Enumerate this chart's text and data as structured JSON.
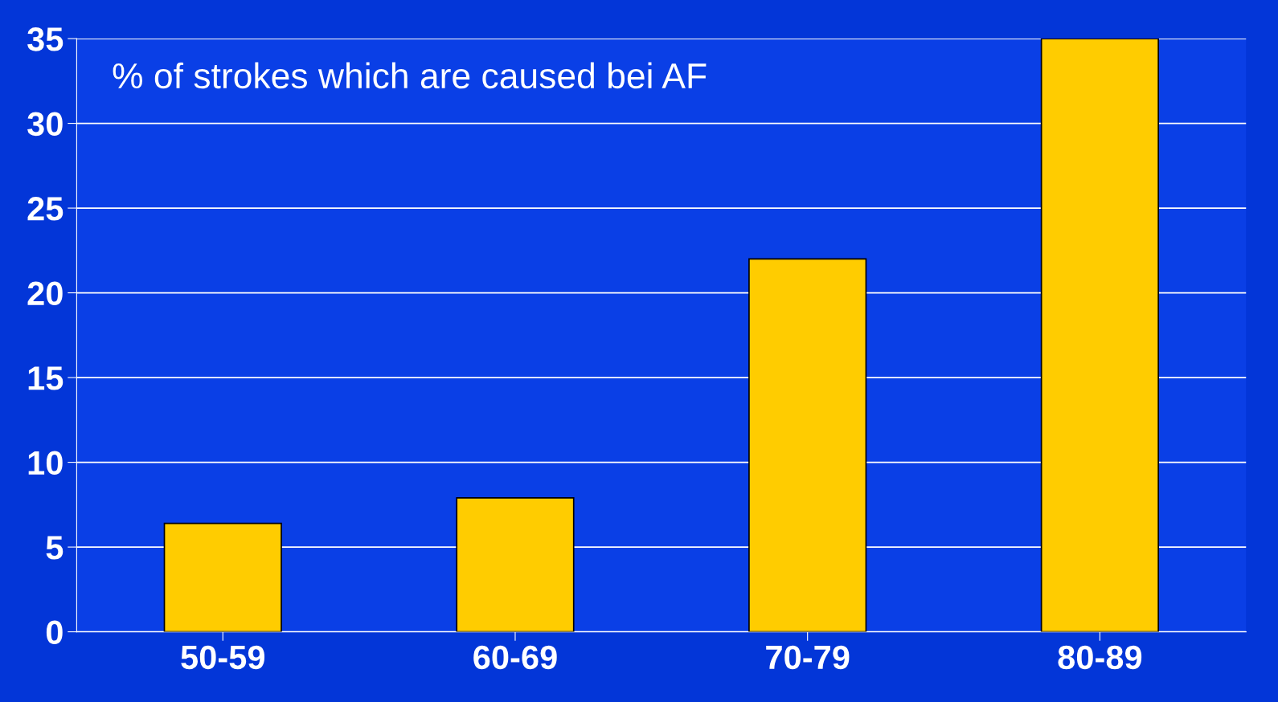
{
  "chart_data": {
    "type": "bar",
    "title": "% of strokes which are caused bei AF",
    "categories": [
      "50-59",
      "60-69",
      "70-79",
      "80-89"
    ],
    "values": [
      6.4,
      7.9,
      22,
      35
    ],
    "color": "#ffcc00",
    "ylim": [
      0,
      35
    ],
    "yticks": [
      0,
      5,
      10,
      15,
      20,
      25,
      30,
      35
    ],
    "grid": "y"
  }
}
